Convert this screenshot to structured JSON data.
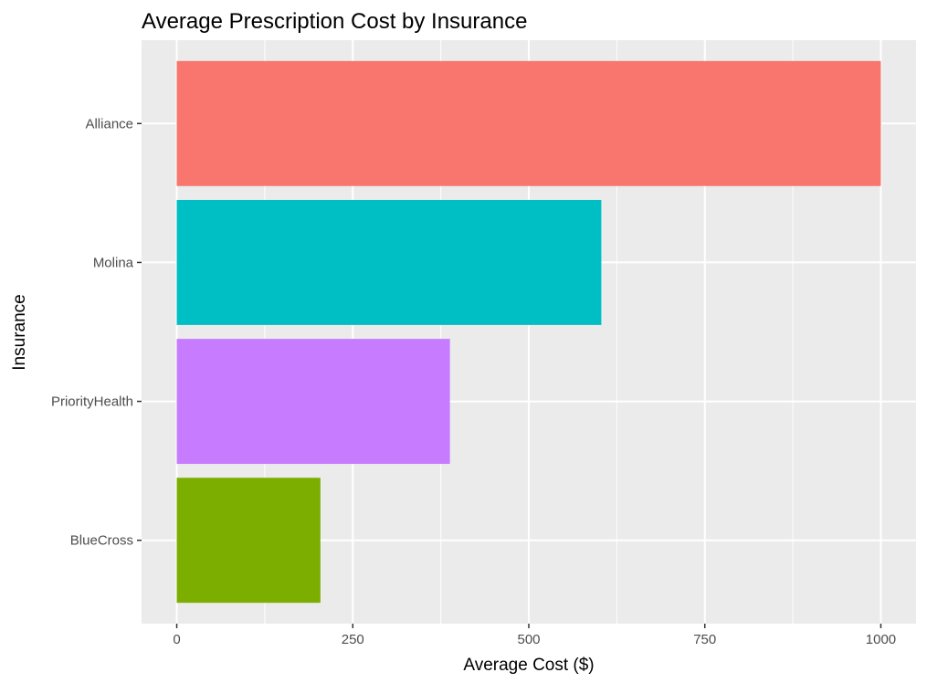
{
  "chart_data": {
    "type": "bar",
    "orientation": "horizontal",
    "title": "Average Prescription Cost by Insurance",
    "xlabel": "Average Cost ($)",
    "ylabel": "Insurance",
    "categories": [
      "Alliance",
      "Molina",
      "PriorityHealth",
      "BlueCross"
    ],
    "values": [
      1000,
      603,
      388,
      204
    ],
    "colors": [
      "#F8766D",
      "#00BFC4",
      "#C77CFF",
      "#7CAE00"
    ],
    "xlim": [
      -50,
      1050
    ],
    "xticks": [
      0,
      250,
      500,
      750,
      1000
    ],
    "xtick_labels": [
      "0",
      "250",
      "500",
      "750",
      "1000"
    ],
    "panel_background": "#EBEBEB",
    "grid_color": "#FFFFFF",
    "grid": true,
    "legend": "none"
  }
}
